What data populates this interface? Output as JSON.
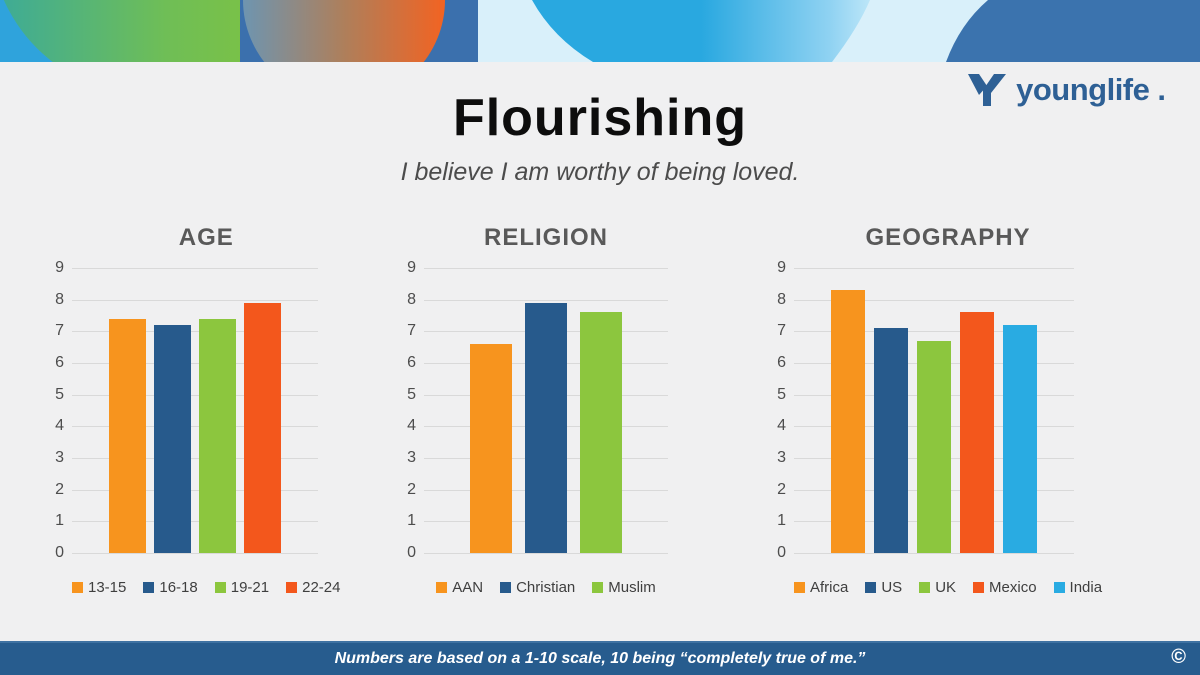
{
  "slide": {
    "title": "Flourishing",
    "subtitle": "I believe I am worthy of being loved.",
    "logo_text": "younglife",
    "logo_period": ".",
    "footer_text": "Numbers are based on a 1-10 scale, 10 being “completely true of me.”",
    "copyright": "©"
  },
  "colors": {
    "orange": "#F7941E",
    "dark_blue": "#275A8C",
    "green": "#8CC63E",
    "red_orange": "#F3571C",
    "light_blue": "#29ABE2",
    "footer_bg": "#275C8E",
    "logo_blue": "#2E6095",
    "slide_bg": "#F0F0F1",
    "gridline": "#D9D9D9"
  },
  "chart_data": [
    {
      "type": "bar",
      "title": "AGE",
      "categories": [
        "13-15",
        "16-18",
        "19-21",
        "22-24"
      ],
      "values": [
        7.4,
        7.2,
        7.4,
        7.9
      ],
      "bar_colors": [
        "#F7941E",
        "#275A8C",
        "#8CC63E",
        "#F3571C"
      ],
      "xlabel": "",
      "ylabel": "",
      "ylim": [
        0,
        9
      ],
      "yticks": [
        0,
        1,
        2,
        3,
        4,
        5,
        6,
        7,
        8,
        9
      ],
      "grid": true,
      "legend_position": "bottom"
    },
    {
      "type": "bar",
      "title": "RELIGION",
      "categories": [
        "AAN",
        "Christian",
        "Muslim"
      ],
      "values": [
        6.6,
        7.9,
        7.6
      ],
      "bar_colors": [
        "#F7941E",
        "#275A8C",
        "#8CC63E"
      ],
      "xlabel": "",
      "ylabel": "",
      "ylim": [
        0,
        9
      ],
      "yticks": [
        0,
        1,
        2,
        3,
        4,
        5,
        6,
        7,
        8,
        9
      ],
      "grid": true,
      "legend_position": "bottom"
    },
    {
      "type": "bar",
      "title": "GEOGRAPHY",
      "categories": [
        "Africa",
        "US",
        "UK",
        "Mexico",
        "India"
      ],
      "values": [
        8.3,
        7.1,
        6.7,
        7.6,
        7.2
      ],
      "bar_colors": [
        "#F7941E",
        "#275A8C",
        "#8CC63E",
        "#F3571C",
        "#29ABE2"
      ],
      "xlabel": "",
      "ylabel": "",
      "ylim": [
        0,
        9
      ],
      "yticks": [
        0,
        1,
        2,
        3,
        4,
        5,
        6,
        7,
        8,
        9
      ],
      "grid": true,
      "legend_position": "bottom"
    }
  ]
}
